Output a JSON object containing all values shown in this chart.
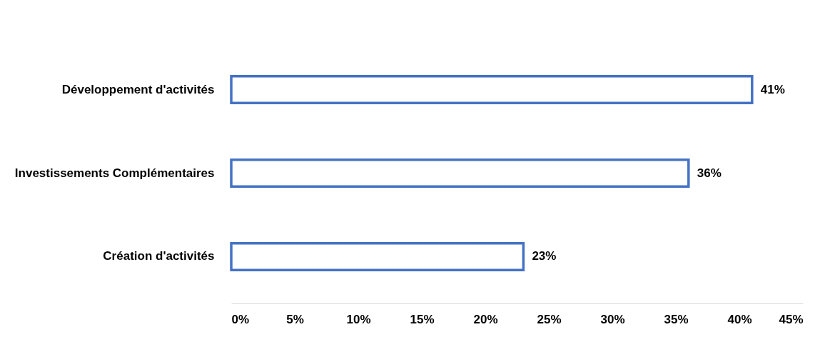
{
  "chart_data": {
    "type": "bar",
    "orientation": "horizontal",
    "categories": [
      "Développement d'activités",
      "Investissements Complémentaires",
      "Création d'activités"
    ],
    "values": [
      41,
      36,
      23
    ],
    "color": "#4472c4",
    "value_labels": [
      "41%",
      "36%",
      "23%"
    ],
    "xlim": [
      0,
      45
    ],
    "xticks": [
      {
        "value": 0,
        "label": "0%"
      },
      {
        "value": 5,
        "label": "5%"
      },
      {
        "value": 10,
        "label": "10%"
      },
      {
        "value": 15,
        "label": "15%"
      },
      {
        "value": 20,
        "label": "20%"
      },
      {
        "value": 25,
        "label": "25%"
      },
      {
        "value": 30,
        "label": "30%"
      },
      {
        "value": 35,
        "label": "35%"
      },
      {
        "value": 40,
        "label": "40%"
      },
      {
        "value": 45,
        "label": "45%"
      }
    ],
    "grid": false
  }
}
